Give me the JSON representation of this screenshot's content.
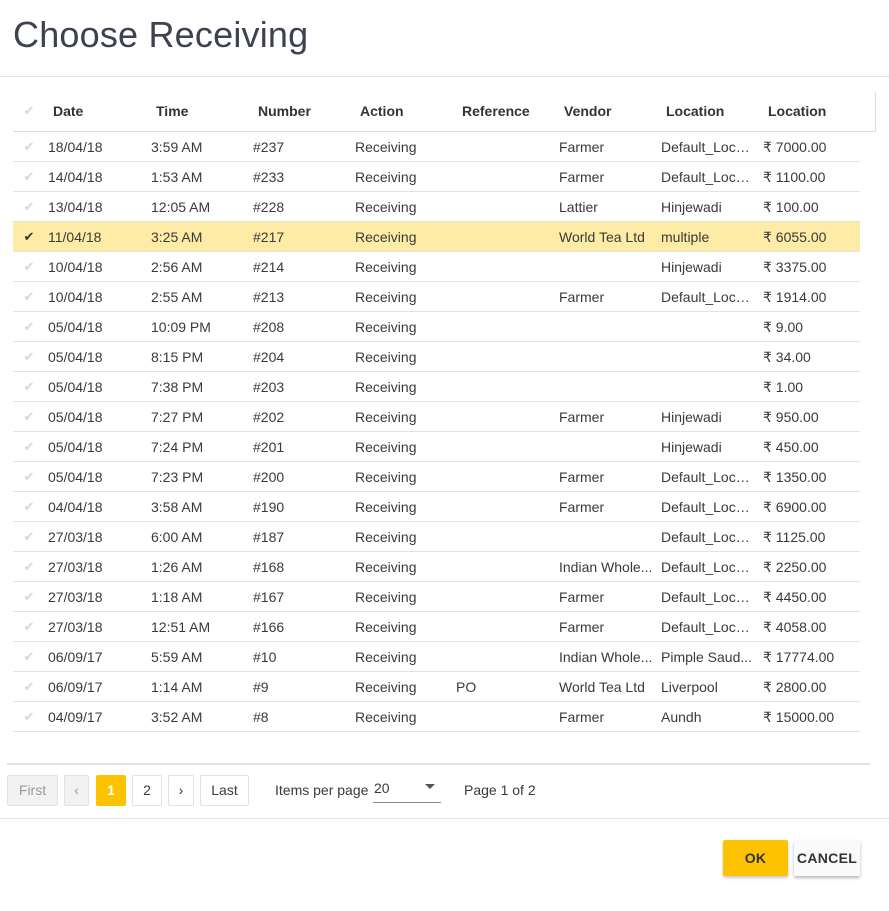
{
  "dialog": {
    "title": "Choose Receiving"
  },
  "table": {
    "header_check_icon": "checkmark-icon",
    "columns": [
      "Date",
      "Time",
      "Number",
      "Action",
      "Reference",
      "Vendor",
      "Location",
      "Location"
    ],
    "rows": [
      {
        "date": "18/04/18",
        "time": "3:59 AM",
        "number": "#237",
        "action": "Receiving",
        "reference": "",
        "vendor": "Farmer",
        "location": "Default_Loca...",
        "amount": "₹ 7000.00",
        "selected": false
      },
      {
        "date": "14/04/18",
        "time": "1:53 AM",
        "number": "#233",
        "action": "Receiving",
        "reference": "",
        "vendor": "Farmer",
        "location": "Default_Loca...",
        "amount": "₹ 1100.00",
        "selected": false
      },
      {
        "date": "13/04/18",
        "time": "12:05 AM",
        "number": "#228",
        "action": "Receiving",
        "reference": "",
        "vendor": "Lattier",
        "location": "Hinjewadi",
        "amount": "₹ 100.00",
        "selected": false
      },
      {
        "date": "11/04/18",
        "time": "3:25 AM",
        "number": "#217",
        "action": "Receiving",
        "reference": "",
        "vendor": "World Tea Ltd",
        "location": "multiple",
        "amount": "₹ 6055.00",
        "selected": true
      },
      {
        "date": "10/04/18",
        "time": "2:56 AM",
        "number": "#214",
        "action": "Receiving",
        "reference": "",
        "vendor": "",
        "location": "Hinjewadi",
        "amount": "₹ 3375.00",
        "selected": false
      },
      {
        "date": "10/04/18",
        "time": "2:55 AM",
        "number": "#213",
        "action": "Receiving",
        "reference": "",
        "vendor": "Farmer",
        "location": "Default_Loca...",
        "amount": "₹ 1914.00",
        "selected": false
      },
      {
        "date": "05/04/18",
        "time": "10:09 PM",
        "number": "#208",
        "action": "Receiving",
        "reference": "",
        "vendor": "",
        "location": "",
        "amount": "₹ 9.00",
        "selected": false
      },
      {
        "date": "05/04/18",
        "time": "8:15 PM",
        "number": "#204",
        "action": "Receiving",
        "reference": "",
        "vendor": "",
        "location": "",
        "amount": "₹ 34.00",
        "selected": false
      },
      {
        "date": "05/04/18",
        "time": "7:38 PM",
        "number": "#203",
        "action": "Receiving",
        "reference": "",
        "vendor": "",
        "location": "",
        "amount": "₹ 1.00",
        "selected": false
      },
      {
        "date": "05/04/18",
        "time": "7:27 PM",
        "number": "#202",
        "action": "Receiving",
        "reference": "",
        "vendor": "Farmer",
        "location": "Hinjewadi",
        "amount": "₹ 950.00",
        "selected": false
      },
      {
        "date": "05/04/18",
        "time": "7:24 PM",
        "number": "#201",
        "action": "Receiving",
        "reference": "",
        "vendor": "",
        "location": "Hinjewadi",
        "amount": "₹ 450.00",
        "selected": false
      },
      {
        "date": "05/04/18",
        "time": "7:23 PM",
        "number": "#200",
        "action": "Receiving",
        "reference": "",
        "vendor": "Farmer",
        "location": "Default_Loca...",
        "amount": "₹ 1350.00",
        "selected": false
      },
      {
        "date": "04/04/18",
        "time": "3:58 AM",
        "number": "#190",
        "action": "Receiving",
        "reference": "",
        "vendor": "Farmer",
        "location": "Default_Loca...",
        "amount": "₹ 6900.00",
        "selected": false
      },
      {
        "date": "27/03/18",
        "time": "6:00 AM",
        "number": "#187",
        "action": "Receiving",
        "reference": "",
        "vendor": "",
        "location": "Default_Loca...",
        "amount": "₹ 1125.00",
        "selected": false
      },
      {
        "date": "27/03/18",
        "time": "1:26 AM",
        "number": "#168",
        "action": "Receiving",
        "reference": "",
        "vendor": "Indian Whole...",
        "location": "Default_Loca...",
        "amount": "₹ 2250.00",
        "selected": false
      },
      {
        "date": "27/03/18",
        "time": "1:18 AM",
        "number": "#167",
        "action": "Receiving",
        "reference": "",
        "vendor": "Farmer",
        "location": "Default_Loca...",
        "amount": "₹ 4450.00",
        "selected": false
      },
      {
        "date": "27/03/18",
        "time": "12:51 AM",
        "number": "#166",
        "action": "Receiving",
        "reference": "",
        "vendor": "Farmer",
        "location": "Default_Loca...",
        "amount": "₹ 4058.00",
        "selected": false
      },
      {
        "date": "06/09/17",
        "time": "5:59 AM",
        "number": "#10",
        "action": "Receiving",
        "reference": "",
        "vendor": "Indian Whole...",
        "location": "Pimple Saud...",
        "amount": "₹ 17774.00",
        "selected": false
      },
      {
        "date": "06/09/17",
        "time": "1:14 AM",
        "number": "#9",
        "action": "Receiving",
        "reference": "PO",
        "vendor": "World Tea Ltd",
        "location": "Liverpool",
        "amount": "₹ 2800.00",
        "selected": false
      },
      {
        "date": "04/09/17",
        "time": "3:52 AM",
        "number": "#8",
        "action": "Receiving",
        "reference": "",
        "vendor": "Farmer",
        "location": "Aundh",
        "amount": "₹ 15000.00",
        "selected": false
      }
    ]
  },
  "pagination": {
    "first_label": "First",
    "prev_label": "‹",
    "pages": [
      "1",
      "2"
    ],
    "current_page": "1",
    "next_label": "›",
    "last_label": "Last",
    "items_per_page_label": "Items per page",
    "items_per_page_value": "20",
    "dropdown_icon": "caret-down-icon",
    "page_info": "Page 1 of 2"
  },
  "actions": {
    "ok_label": "OK",
    "cancel_label": "CANCEL"
  },
  "colors": {
    "accent": "#fdc300",
    "selected_row": "#fdeba6",
    "title": "#3d4150"
  }
}
